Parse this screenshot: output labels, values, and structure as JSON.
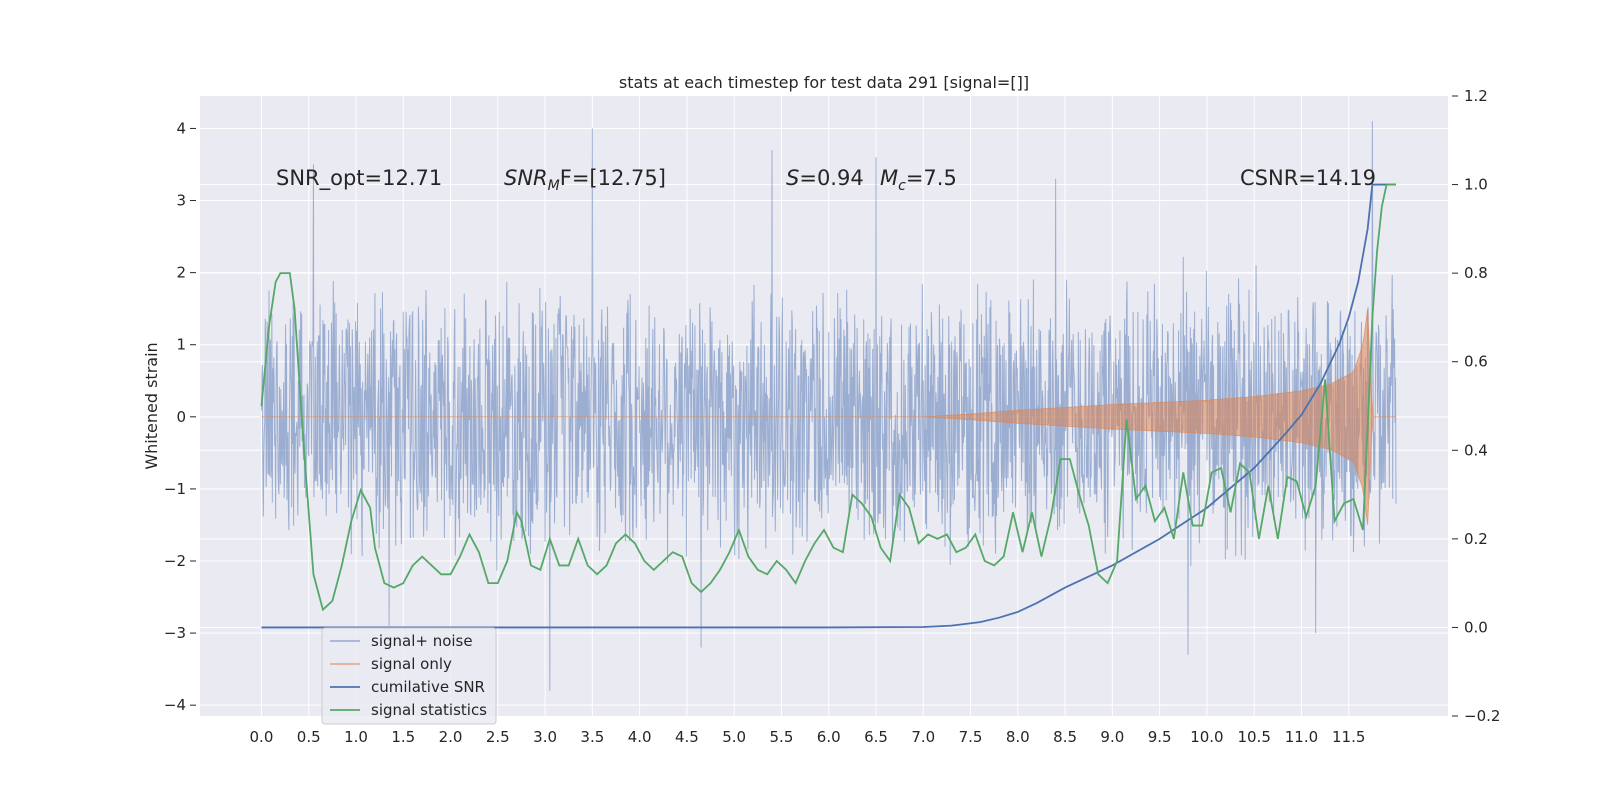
{
  "chart_data": {
    "type": "line",
    "title": "stats at each timestep for test data 291 [signal=[]]",
    "xlabel": "",
    "ylabel": "Whitened strain",
    "xlim": [
      -0.65,
      12.55
    ],
    "ylim": [
      -4.15,
      4.45
    ],
    "y2lim": [
      -0.2,
      1.2
    ],
    "xticks": [
      0.0,
      0.5,
      1.0,
      1.5,
      2.0,
      2.5,
      3.0,
      3.5,
      4.0,
      4.5,
      5.0,
      5.5,
      6.0,
      6.5,
      7.0,
      7.5,
      8.0,
      8.5,
      9.0,
      9.5,
      10.0,
      10.5,
      11.0,
      11.5
    ],
    "xtick_labels": [
      "0.0",
      "0.5",
      "1.0",
      "1.5",
      "2.0",
      "2.5",
      "3.0",
      "3.5",
      "4.0",
      "4.5",
      "5.0",
      "5.5",
      "6.0",
      "6.5",
      "7.0",
      "7.5",
      "8.0",
      "8.5",
      "9.0",
      "9.5",
      "10.0",
      "10.5",
      "11.0",
      "11.5"
    ],
    "yticks": [
      -4,
      -3,
      -2,
      -1,
      0,
      1,
      2,
      3,
      4
    ],
    "ytick_labels": [
      "−4",
      "−3",
      "−2",
      "−1",
      "0",
      "1",
      "2",
      "3",
      "4"
    ],
    "y2ticks": [
      -0.2,
      0.0,
      0.2,
      0.4,
      0.6,
      0.8,
      1.0,
      1.2
    ],
    "y2tick_labels": [
      "−0.2",
      "0.0",
      "0.2",
      "0.4",
      "0.6",
      "0.8",
      "1.0",
      "1.2"
    ],
    "grid": true,
    "legend_position": "lower-left",
    "colors": {
      "noise": "#4c72b0",
      "signal": "#dd8452",
      "cumulative": "#4c72b0",
      "statistics": "#55a868",
      "background": "#eaeaf2",
      "grid": "#ffffff"
    },
    "series": [
      {
        "name": "signal+ noise",
        "axis": "left",
        "description": "whitened strain time series spanning t=0 to 12.0, typically within about -2.3 to 2.3 with spikes near 3.5-4.0",
        "x_range": [
          0.0,
          12.0
        ],
        "envelope": [
          1.5,
          2.3
        ],
        "spikes": [
          [
            0.55,
            3.5
          ],
          [
            3.5,
            4.0
          ],
          [
            5.4,
            3.7
          ],
          [
            6.5,
            3.6
          ],
          [
            8.4,
            3.3
          ],
          [
            11.75,
            4.1
          ],
          [
            3.05,
            -3.8
          ],
          [
            4.65,
            -3.2
          ],
          [
            9.8,
            -3.3
          ],
          [
            11.15,
            -3.0
          ],
          [
            1.35,
            -2.9
          ]
        ]
      },
      {
        "name": "signal only",
        "axis": "left",
        "description": "zero until ~7.0, then a growing chirp envelope peaking near t=11.7",
        "x": [
          0.0,
          7.0,
          7.5,
          8.0,
          8.5,
          9.0,
          9.5,
          10.0,
          10.5,
          11.0,
          11.3,
          11.55,
          11.65,
          11.7,
          11.75,
          12.0
        ],
        "envelope": [
          0.0,
          0.0,
          0.04,
          0.09,
          0.13,
          0.17,
          0.2,
          0.23,
          0.28,
          0.36,
          0.45,
          0.62,
          1.0,
          1.5,
          0.0,
          0.0
        ]
      },
      {
        "name": "cumilative SNR",
        "axis": "right",
        "x": [
          0.0,
          6.0,
          7.0,
          7.3,
          7.6,
          7.8,
          8.0,
          8.2,
          8.5,
          9.0,
          9.5,
          10.0,
          10.5,
          10.8,
          11.0,
          11.2,
          11.4,
          11.5,
          11.6,
          11.7,
          11.75,
          12.0
        ],
        "values": [
          0.0,
          0.0,
          0.001,
          0.004,
          0.012,
          0.022,
          0.035,
          0.055,
          0.09,
          0.14,
          0.2,
          0.27,
          0.36,
          0.43,
          0.48,
          0.55,
          0.64,
          0.7,
          0.78,
          0.9,
          1.0,
          1.0
        ]
      },
      {
        "name": "signal statistics",
        "axis": "right",
        "x": [
          0.0,
          0.08,
          0.15,
          0.2,
          0.3,
          0.35,
          0.45,
          0.55,
          0.65,
          0.75,
          0.85,
          0.95,
          1.05,
          1.15,
          1.2,
          1.3,
          1.4,
          1.5,
          1.6,
          1.7,
          1.8,
          1.9,
          2.0,
          2.1,
          2.2,
          2.3,
          2.4,
          2.5,
          2.6,
          2.7,
          2.75,
          2.85,
          2.95,
          3.05,
          3.15,
          3.25,
          3.35,
          3.45,
          3.55,
          3.65,
          3.75,
          3.85,
          3.95,
          4.05,
          4.15,
          4.25,
          4.35,
          4.45,
          4.55,
          4.65,
          4.75,
          4.85,
          4.95,
          5.05,
          5.15,
          5.25,
          5.35,
          5.45,
          5.55,
          5.65,
          5.75,
          5.85,
          5.95,
          6.05,
          6.15,
          6.25,
          6.35,
          6.45,
          6.55,
          6.65,
          6.75,
          6.85,
          6.95,
          7.05,
          7.15,
          7.25,
          7.35,
          7.45,
          7.55,
          7.65,
          7.75,
          7.85,
          7.95,
          8.05,
          8.15,
          8.25,
          8.35,
          8.45,
          8.55,
          8.65,
          8.75,
          8.85,
          8.95,
          9.05,
          9.15,
          9.25,
          9.35,
          9.45,
          9.55,
          9.65,
          9.75,
          9.85,
          9.95,
          10.05,
          10.15,
          10.25,
          10.35,
          10.45,
          10.55,
          10.65,
          10.75,
          10.85,
          10.95,
          11.05,
          11.15,
          11.25,
          11.35,
          11.45,
          11.55,
          11.65,
          11.7,
          11.75,
          11.8,
          11.85,
          11.9,
          12.0
        ],
        "values": [
          0.5,
          0.68,
          0.78,
          0.8,
          0.8,
          0.72,
          0.4,
          0.12,
          0.04,
          0.06,
          0.14,
          0.24,
          0.31,
          0.27,
          0.18,
          0.1,
          0.09,
          0.1,
          0.14,
          0.16,
          0.14,
          0.12,
          0.12,
          0.16,
          0.21,
          0.17,
          0.1,
          0.1,
          0.15,
          0.26,
          0.24,
          0.14,
          0.13,
          0.2,
          0.14,
          0.14,
          0.2,
          0.14,
          0.12,
          0.14,
          0.19,
          0.21,
          0.19,
          0.15,
          0.13,
          0.15,
          0.17,
          0.16,
          0.1,
          0.08,
          0.1,
          0.13,
          0.17,
          0.22,
          0.16,
          0.13,
          0.12,
          0.15,
          0.13,
          0.1,
          0.15,
          0.19,
          0.22,
          0.18,
          0.17,
          0.3,
          0.28,
          0.25,
          0.18,
          0.15,
          0.3,
          0.27,
          0.19,
          0.21,
          0.2,
          0.21,
          0.17,
          0.18,
          0.21,
          0.15,
          0.14,
          0.16,
          0.26,
          0.17,
          0.26,
          0.16,
          0.25,
          0.38,
          0.38,
          0.3,
          0.23,
          0.12,
          0.1,
          0.15,
          0.47,
          0.29,
          0.32,
          0.24,
          0.27,
          0.2,
          0.35,
          0.23,
          0.23,
          0.35,
          0.36,
          0.26,
          0.37,
          0.35,
          0.2,
          0.32,
          0.2,
          0.34,
          0.33,
          0.25,
          0.32,
          0.56,
          0.24,
          0.28,
          0.29,
          0.22,
          0.45,
          0.7,
          0.85,
          0.95,
          1.0,
          1.0
        ]
      }
    ],
    "annotations": {
      "snr_opt": "SNR_opt=12.71",
      "snr_mf_label": "SNR",
      "snr_mf_sub": "M",
      "snr_mf_rest": "F=[12.75]",
      "s_label": "S",
      "s_value": "=0.94",
      "mc_label": "M",
      "mc_sub": "c",
      "mc_value": "=7.5",
      "csnr": "CSNR=14.19"
    },
    "legend": {
      "noise": "signal+ noise",
      "signal": "signal only",
      "cumulative": "cumilative SNR",
      "statistics": "signal statistics"
    }
  }
}
